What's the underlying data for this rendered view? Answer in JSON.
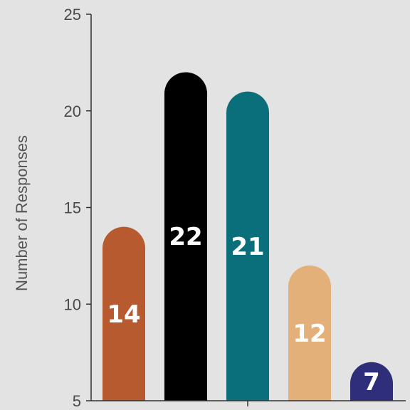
{
  "chart_data": {
    "type": "bar",
    "categories": [
      "",
      "",
      "",
      "",
      ""
    ],
    "values": [
      14,
      22,
      21,
      12,
      7
    ],
    "data_labels": [
      "14",
      "22",
      "21",
      "12",
      "7"
    ],
    "bar_colors": [
      "#b85a30",
      "#000000",
      "#0a6f7a",
      "#e3b079",
      "#2e2e7a"
    ],
    "ylabel": "Number of Responses",
    "xlabel": "",
    "title": "",
    "ylim": [
      5,
      25
    ],
    "y_ticks": [
      5,
      10,
      15,
      20,
      25
    ],
    "y_tick_labels": [
      "5",
      "10",
      "15",
      "20",
      "25"
    ],
    "grid": false,
    "bar_style": "rounded-top"
  },
  "colors": {
    "background": "#e3e3e3",
    "axis": "#333333",
    "label_text": "#ffffff"
  }
}
